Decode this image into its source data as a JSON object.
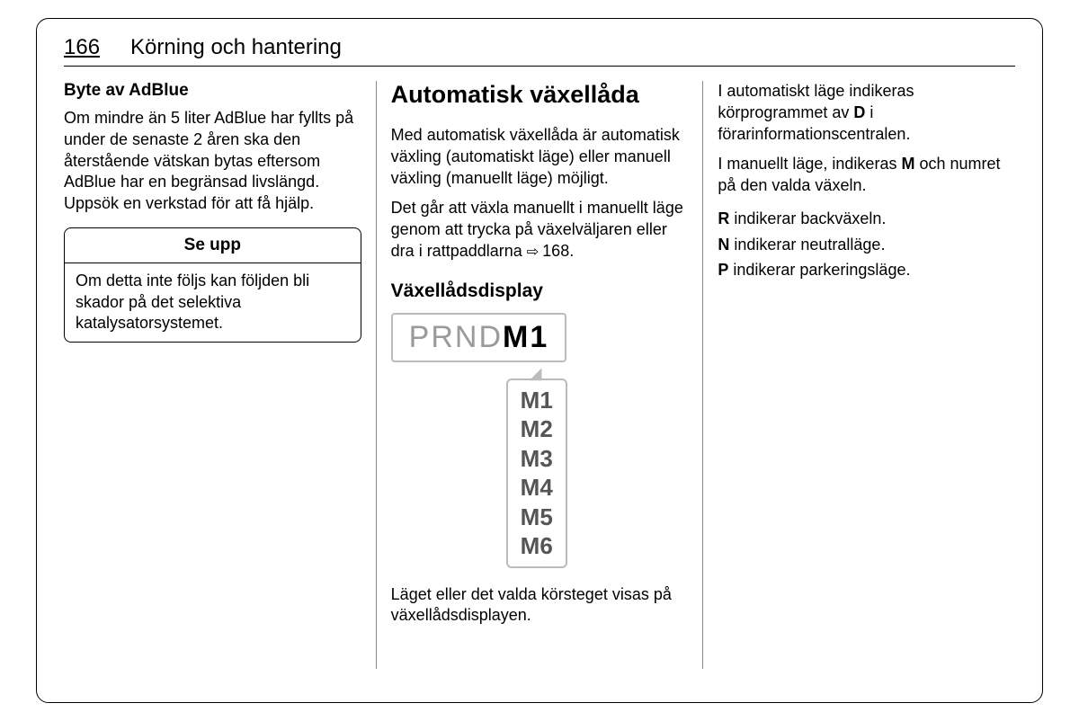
{
  "header": {
    "page_number": "166",
    "chapter_title": "Körning och hantering"
  },
  "col1": {
    "h2": "Byte av AdBlue",
    "p1": "Om mindre än 5 liter AdBlue har fyllts på under de senaste 2 åren ska den återstående vätskan bytas eftersom AdBlue har en begränsad livslängd. Uppsök en verkstad för att få hjälp.",
    "notice": {
      "title": "Se upp",
      "body": "Om detta inte följs kan följden bli skador på det selektiva katalysatorsystemet."
    }
  },
  "col2": {
    "h1": "Automatisk växellåda",
    "p1": "Med automatisk växellåda är automatisk växling (automatiskt läge) eller manuell växling (manuellt läge) möjligt.",
    "p2a": "Det går att växla manuellt i manuellt läge genom att trycka på växelväljaren eller dra i rattpaddlarna ",
    "p2ref": "168.",
    "h3": "Växellådsdisplay",
    "gear": {
      "dim": "PRND",
      "sel": "M1",
      "list": [
        "M1",
        "M2",
        "M3",
        "M4",
        "M5",
        "M6"
      ]
    },
    "p3": "Läget eller det valda körsteget visas på växellådsdisplayen."
  },
  "col3": {
    "p1a": "I automatiskt läge indikeras körprogrammet av ",
    "p1b": "D",
    "p1c": " i förarinformationscentralen.",
    "p2a": "I manuellt läge, indikeras ",
    "p2b": "M",
    "p2c": " och numret på den valda växeln.",
    "lines": [
      {
        "k": "R",
        "t": " indikerar backväxeln."
      },
      {
        "k": "N",
        "t": " indikerar neutralläge."
      },
      {
        "k": "P",
        "t": " indikerar parkeringsläge."
      }
    ]
  }
}
